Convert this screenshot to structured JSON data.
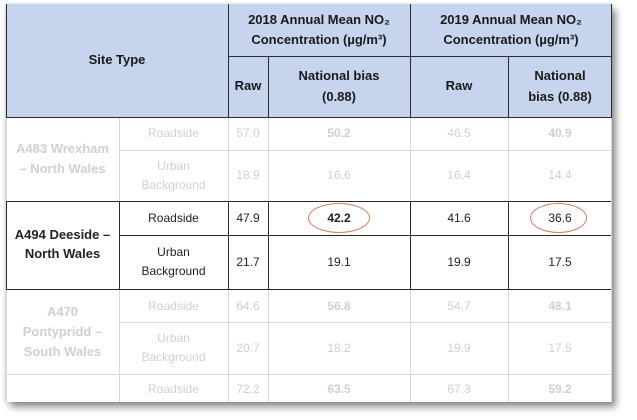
{
  "header": {
    "site_type": "Site Type",
    "col_2018": "2018 Annual Mean NO₂ Concentration (µg/m³)",
    "col_2019": "2019 Annual Mean NO₂ Concentration (µg/m³)",
    "raw": "Raw",
    "national_bias": "National bias (0.88)"
  },
  "rows": [
    {
      "site": "A483 Wrexham – North Wales",
      "faded": true,
      "types": [
        {
          "type": "Roadside",
          "raw_2018": "57.0",
          "bias_2018": "50.2",
          "raw_2019": "46.5",
          "bias_2019": "40.9"
        },
        {
          "type": "Urban Background",
          "raw_2018": "18.9",
          "bias_2018": "16.6",
          "raw_2019": "16.4",
          "bias_2019": "14.4"
        }
      ]
    },
    {
      "site": "A494 Deeside – North Wales",
      "faded": false,
      "types": [
        {
          "type": "Roadside",
          "raw_2018": "47.9",
          "bias_2018": "42.2",
          "raw_2019": "41.6",
          "bias_2019": "36.6"
        },
        {
          "type": "Urban Background",
          "raw_2018": "21.7",
          "bias_2018": "19.1",
          "raw_2019": "19.9",
          "bias_2019": "17.5"
        }
      ]
    },
    {
      "site": "A470 Pontypridd – South Wales",
      "faded": true,
      "types": [
        {
          "type": "Roadside",
          "raw_2018": "64.6",
          "bias_2018": "56.8",
          "raw_2019": "54.7",
          "bias_2019": "48.1"
        },
        {
          "type": "Urban Background",
          "raw_2018": "20.7",
          "bias_2018": "18.2",
          "raw_2019": "19.9",
          "bias_2019": "17.5"
        }
      ]
    },
    {
      "site": "",
      "faded": true,
      "types": [
        {
          "type": "Roadside",
          "raw_2018": "72.2",
          "bias_2018": "63.5",
          "raw_2019": "67.3",
          "bias_2019": "59.2"
        }
      ]
    }
  ],
  "colors": {
    "header_bg": "#c6d4ee",
    "highlight_ring": "#d77b62"
  }
}
